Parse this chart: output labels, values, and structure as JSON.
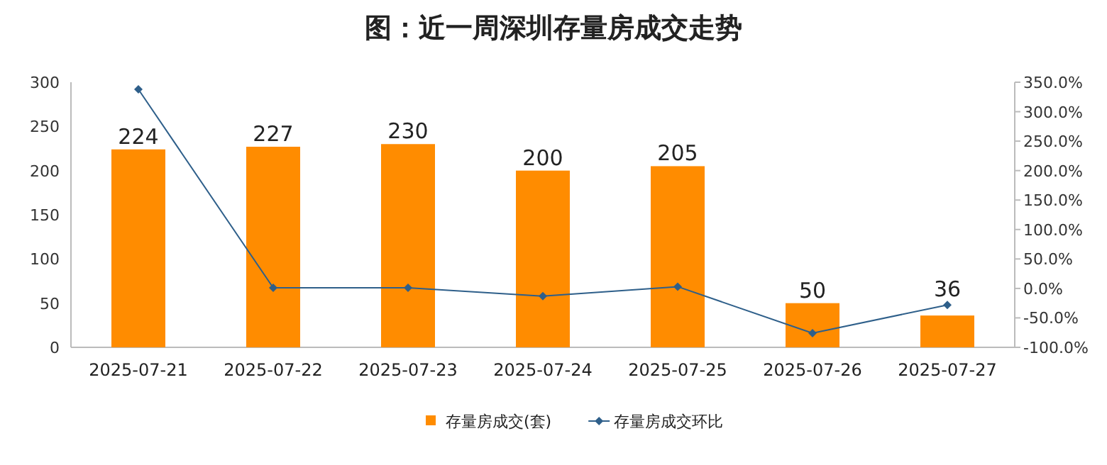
{
  "chart_data": {
    "type": "bar",
    "title": "图：近一周深圳存量房成交走势",
    "categories": [
      "2025-07-21",
      "2025-07-22",
      "2025-07-23",
      "2025-07-24",
      "2025-07-25",
      "2025-07-26",
      "2025-07-27"
    ],
    "series": [
      {
        "name": "存量房成交(套)",
        "color": "#ff8c00",
        "values": [
          224,
          227,
          230,
          200,
          205,
          50,
          36
        ],
        "value_labels": [
          "224",
          "227",
          "230",
          "200",
          "205",
          "50",
          "36"
        ]
      },
      {
        "name": "存量房成交环比",
        "type": "line",
        "axis": "y2",
        "color": "#2e5f8a",
        "marker": "diamond",
        "values": [
          338,
          1,
          1,
          -13,
          3,
          -76,
          -28
        ]
      }
    ],
    "ylim": [
      0,
      300
    ],
    "yticks": [
      0,
      50,
      100,
      150,
      200,
      250,
      300
    ],
    "y2lim": [
      -100,
      350
    ],
    "y2ticks": [
      {
        "value": -100,
        "label": "-100.0%"
      },
      {
        "value": -50,
        "label": "-50.0%"
      },
      {
        "value": 0,
        "label": "0.0%"
      },
      {
        "value": 50,
        "label": "50.0%"
      },
      {
        "value": 100,
        "label": "100.0%"
      },
      {
        "value": 150,
        "label": "150.0%"
      },
      {
        "value": 200,
        "label": "200.0%"
      },
      {
        "value": 250,
        "label": "250.0%"
      },
      {
        "value": 300,
        "label": "300.0%"
      },
      {
        "value": 350,
        "label": "350.0%"
      }
    ],
    "legend": "bottom"
  }
}
